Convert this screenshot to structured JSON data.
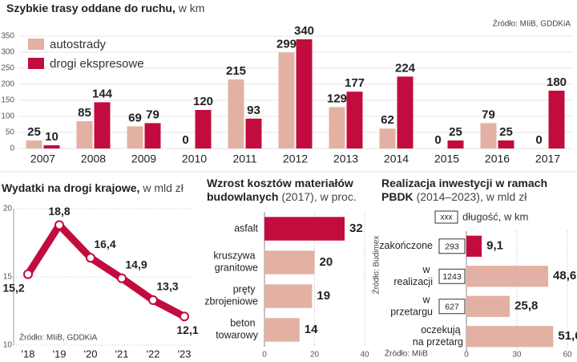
{
  "chart_data": [
    {
      "type": "bar",
      "title": "Szybkie trasy oddane do ruchu,",
      "subtitle": "w km",
      "source": "Źródło: MIiB, GDDKiA",
      "categories": [
        "2007",
        "2008",
        "2009",
        "2010",
        "2011",
        "2012",
        "2013",
        "2014",
        "2015",
        "2016",
        "2017"
      ],
      "series": [
        {
          "name": "autostrady",
          "color": "#e2b1a4",
          "values": [
            25,
            85,
            69,
            0,
            215,
            299,
            129,
            62,
            0,
            79,
            0
          ]
        },
        {
          "name": "drogi ekspresowe",
          "color": "#c20c3d",
          "values": [
            10,
            144,
            79,
            120,
            93,
            340,
            177,
            224,
            25,
            25,
            180
          ]
        }
      ],
      "ylim": [
        0,
        350
      ],
      "yticks": [
        0,
        50,
        100,
        150,
        200,
        250,
        300,
        350
      ],
      "grid": true,
      "legend": "top-left"
    },
    {
      "type": "line",
      "title": "Wydatki na drogi krajowe,",
      "subtitle": "w mld zł",
      "source": "Źródło: MIiB, GDDKiA",
      "categories": [
        "'18",
        "'19",
        "'20",
        "'21",
        "'22",
        "'23"
      ],
      "values": [
        15.2,
        18.8,
        16.4,
        14.9,
        13.3,
        12.1
      ],
      "value_labels": [
        "15,2",
        "18,8",
        "16,4",
        "14,9",
        "13,3",
        "12,1"
      ],
      "color": "#c20c3d",
      "ylim": [
        10,
        20
      ],
      "yticks": [
        10,
        15,
        20
      ],
      "grid": true
    },
    {
      "type": "barh",
      "title": "Wzrost kosztów materiałów budowlanych",
      "subtitle": "(2017), w proc.",
      "source": "Źródło: Budimex",
      "categories": [
        "asfalt",
        "kruszywa granitowe",
        "pręty zbrojeniowe",
        "beton towarowy"
      ],
      "values": [
        32,
        20,
        19,
        14
      ],
      "colors": [
        "#c20c3d",
        "#e2b1a4",
        "#e2b1a4",
        "#e2b1a4"
      ],
      "xlim": [
        0,
        40
      ],
      "xticks": [
        0,
        20,
        40
      ],
      "grid": true
    },
    {
      "type": "barh",
      "title": "Realizacja inwestycji w ramach PBDK",
      "subtitle": "(2014–2023), w mld zł",
      "source": "Źródło: MIiB",
      "legend_box_label": "xxx",
      "legend_label": "długość, w km",
      "categories": [
        "zakończone",
        "w realizacji",
        "w przetargu",
        "oczekują na przetarg"
      ],
      "values": [
        9.1,
        48.6,
        25.8,
        51.6
      ],
      "value_labels": [
        "9,1",
        "48,6",
        "25,8",
        "51,6"
      ],
      "lengths": [
        293,
        1243,
        627,
        null
      ],
      "colors": [
        "#c20c3d",
        "#e2b1a4",
        "#e2b1a4",
        "#e2b1a4"
      ],
      "xlim": [
        0,
        60
      ],
      "xticks": [
        0,
        30,
        60
      ],
      "grid": true
    }
  ]
}
